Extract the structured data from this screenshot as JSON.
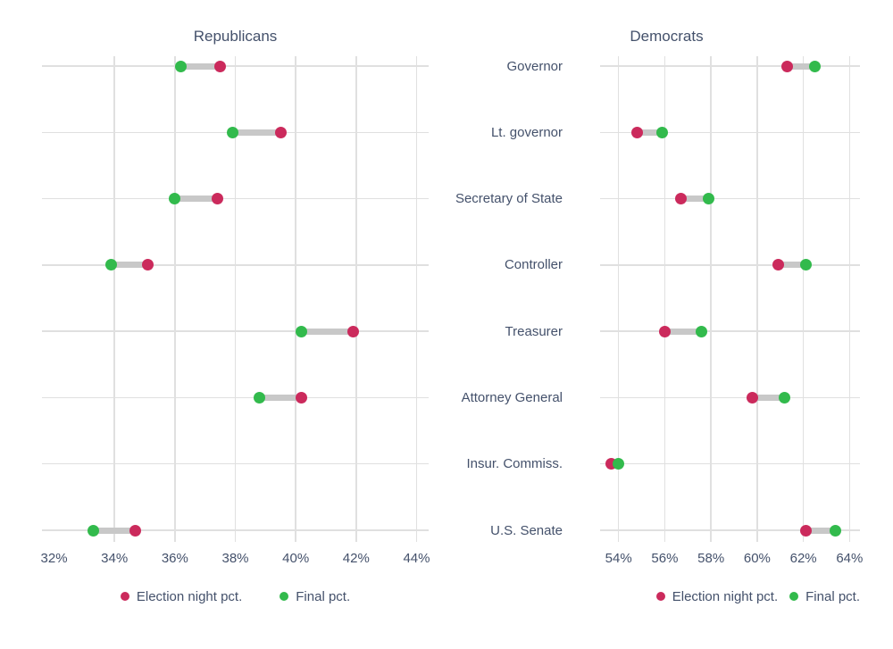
{
  "figure": {
    "type": "dumbbell-dot-plot",
    "panels": [
      "Republicans",
      "Democrats"
    ]
  },
  "colors": {
    "election_night": "#cb2a5c",
    "final": "#32ba4c",
    "connector": "#c8c8c8",
    "gridline": "#e0e0e0",
    "text": "#44516b",
    "background": "#ffffff"
  },
  "chart_data": [
    {
      "type": "dumbbell",
      "title": "Republicans",
      "categories": [
        "Governor",
        "Lt. governor",
        "Secretary of State",
        "Controller",
        "Treasurer",
        "Attorney General",
        "Insur. Commiss.",
        "U.S. Senate"
      ],
      "series": [
        {
          "name": "Election night pct.",
          "color": "#cb2a5c",
          "values": [
            37.5,
            39.5,
            37.4,
            35.1,
            41.9,
            40.2,
            null,
            34.7
          ]
        },
        {
          "name": "Final pct.",
          "color": "#32ba4c",
          "values": [
            36.2,
            37.9,
            36.0,
            33.9,
            40.2,
            38.8,
            null,
            33.3
          ]
        }
      ],
      "x_ticks": [
        "32%",
        "34%",
        "36%",
        "38%",
        "40%",
        "42%",
        "44%"
      ],
      "x_tick_values": [
        32,
        34,
        36,
        38,
        40,
        42,
        44
      ],
      "xlim": [
        31.6,
        44.4
      ],
      "grid": true,
      "first_tick_gridline": false,
      "category_labels_visible": false,
      "legend_position": "bottom-center"
    },
    {
      "type": "dumbbell",
      "title": "Democrats",
      "categories": [
        "Governor",
        "Lt. governor",
        "Secretary of State",
        "Controller",
        "Treasurer",
        "Attorney General",
        "Insur. Commiss.",
        "U.S. Senate"
      ],
      "series": [
        {
          "name": "Election night pct.",
          "color": "#cb2a5c",
          "values": [
            61.3,
            54.8,
            56.7,
            60.9,
            56.0,
            59.8,
            53.7,
            62.1
          ]
        },
        {
          "name": "Final pct.",
          "color": "#32ba4c",
          "values": [
            62.5,
            55.9,
            57.9,
            62.1,
            57.6,
            61.2,
            54.0,
            63.4
          ]
        }
      ],
      "x_ticks": [
        "54%",
        "56%",
        "58%",
        "60%",
        "62%",
        "64%"
      ],
      "x_tick_values": [
        54,
        56,
        58,
        60,
        62,
        64
      ],
      "xlim": [
        53.2,
        64.45
      ],
      "grid": true,
      "first_tick_gridline": true,
      "category_labels_visible": true,
      "legend_position": "bottom-right"
    }
  ]
}
